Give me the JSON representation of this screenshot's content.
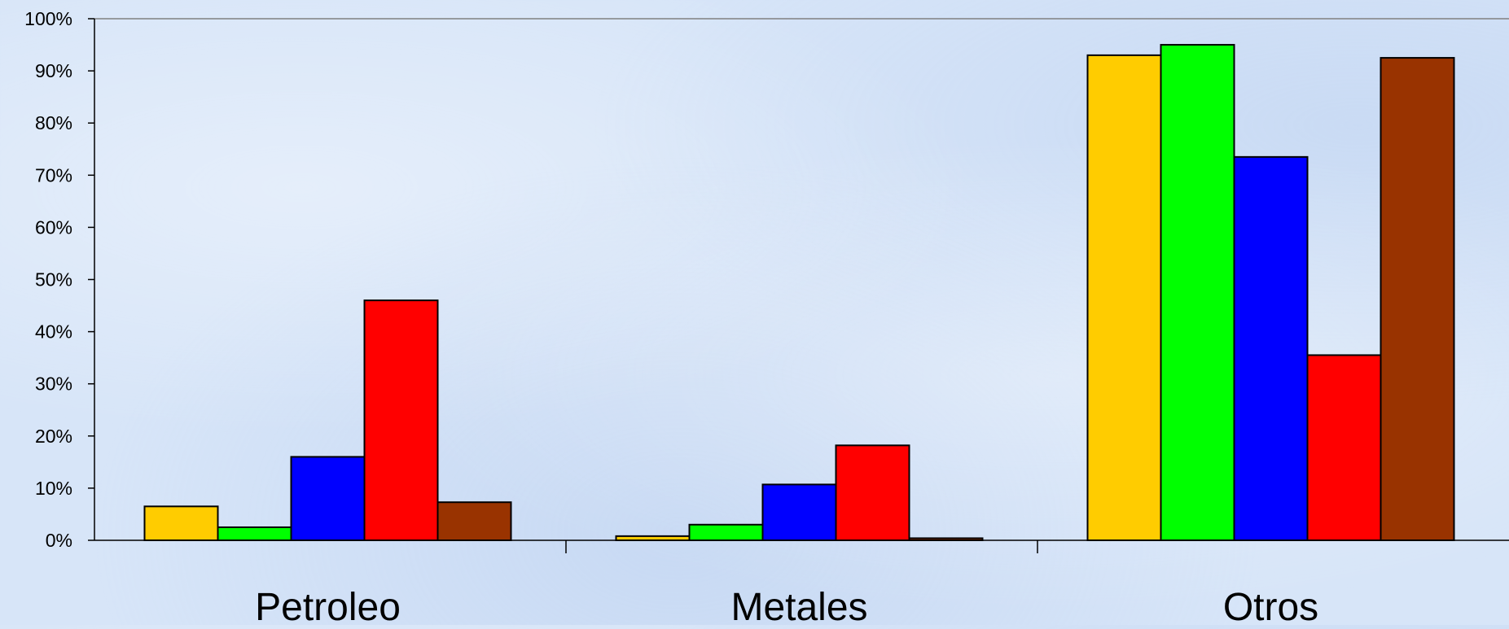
{
  "chart_data": {
    "type": "bar",
    "title": "",
    "xlabel": "",
    "ylabel": "",
    "categories": [
      "Petroleo",
      "Metales",
      "Otros"
    ],
    "series": [
      {
        "color": "#ffcc00",
        "values": [
          6.5,
          0.8,
          93
        ]
      },
      {
        "color": "#00ff00",
        "values": [
          2.5,
          3,
          95
        ]
      },
      {
        "color": "#0000ff",
        "values": [
          16,
          10.7,
          73.5
        ]
      },
      {
        "color": "#ff0000",
        "values": [
          46,
          18.2,
          35.5
        ]
      },
      {
        "color": "#993300",
        "values": [
          7.3,
          0.4,
          92.5
        ]
      }
    ],
    "ylim": [
      0,
      100
    ],
    "y_ticks": [
      "0%",
      "10%",
      "20%",
      "30%",
      "40%",
      "50%",
      "60%",
      "70%",
      "80%",
      "90%",
      "100%"
    ],
    "y_tick_values": [
      0,
      10,
      20,
      30,
      40,
      50,
      60,
      70,
      80,
      90,
      100
    ],
    "grid": false,
    "legend": "none"
  }
}
